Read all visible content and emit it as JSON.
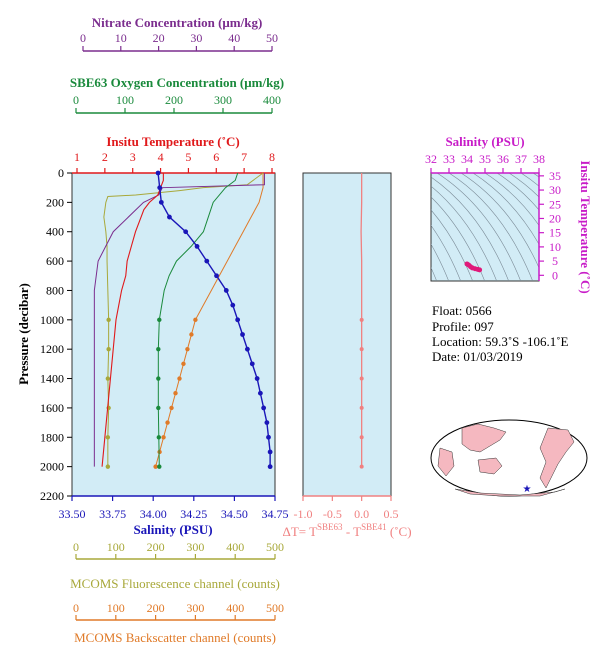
{
  "colors": {
    "nitrate": "#7b2d8e",
    "oxygen": "#1a8a3c",
    "temperature": "#e0191b",
    "salinity": "#1a16b8",
    "fluorescence": "#a8a83a",
    "backscatter": "#e07a28",
    "deltaT": "#f08080",
    "ts_axis": "#c81cc8",
    "panel_bg": "#d2ecf6",
    "land": "#f5b8c0"
  },
  "main_plot": {
    "pressure_axis": {
      "label": "Pressure (decibar)",
      "ticks": [
        "0",
        "200",
        "400",
        "600",
        "800",
        "1000",
        "1200",
        "1400",
        "1600",
        "1800",
        "2000",
        "2200"
      ],
      "range": [
        0,
        2200
      ]
    },
    "nitrate_axis": {
      "label": "Nitrate Concentration (μm/kg)",
      "ticks": [
        "0",
        "10",
        "20",
        "30",
        "40",
        "50"
      ],
      "range": [
        0,
        50
      ]
    },
    "oxygen_axis": {
      "label": "SBE63 Oxygen Concentration (μm/kg)",
      "ticks": [
        "0",
        "100",
        "200",
        "300",
        "400"
      ],
      "range": [
        0,
        400
      ]
    },
    "temperature_axis": {
      "label": "Insitu Temperature (˚C)",
      "ticks": [
        "1",
        "2",
        "3",
        "4",
        "5",
        "6",
        "7",
        "8"
      ],
      "range": [
        1,
        8
      ]
    },
    "salinity_axis": {
      "label": "Salinity (PSU)",
      "ticks": [
        "33.50",
        "33.75",
        "34.00",
        "34.25",
        "34.50",
        "34.75"
      ],
      "range": [
        33.5,
        34.75
      ]
    },
    "fluorescence_axis": {
      "label": "MCOMS Fluorescence channel (counts)",
      "ticks": [
        "0",
        "100",
        "200",
        "300",
        "400",
        "500"
      ],
      "range": [
        0,
        500
      ]
    },
    "backscatter_axis": {
      "label": "MCOMS Backscatter channel (counts)",
      "ticks": [
        "0",
        "100",
        "200",
        "300",
        "400",
        "500"
      ],
      "range": [
        0,
        500
      ]
    }
  },
  "delta_plot": {
    "ticks": [
      "-1.0",
      "-0.5",
      "0.0",
      "0.5"
    ],
    "range": [
      -1.0,
      0.5
    ],
    "label_prefix": "ΔT= T",
    "label_sup1": "SBE63",
    "label_mid": " - T",
    "label_sup2": "SBE41",
    "label_suffix": " (˚C)"
  },
  "ts_plot": {
    "top_label": "Salinity (PSU)",
    "top_ticks": [
      "32",
      "33",
      "34",
      "35",
      "36",
      "37",
      "38"
    ],
    "top_range": [
      32,
      38
    ],
    "right_label": "Insitu Temperature (˚C)",
    "right_ticks": [
      "0",
      "5",
      "10",
      "15",
      "20",
      "25",
      "30",
      "35"
    ],
    "right_range": [
      -2,
      36
    ]
  },
  "info": {
    "float": "Float:  0566",
    "profile": "Profile:  097",
    "location": "Location:  59.3˚S  -106.1˚E",
    "date": "Date:  01/03/2019"
  },
  "chart_data": [
    {
      "type": "line",
      "name": "Insitu Temperature",
      "x_unit": "˚C",
      "pressure": [
        0,
        50,
        100,
        150,
        200,
        250,
        300,
        400,
        500,
        600,
        700,
        800,
        900,
        1000,
        1200,
        1400,
        1600,
        1800,
        2000
      ],
      "values": [
        4.1,
        4.1,
        4.0,
        3.9,
        3.6,
        3.4,
        3.3,
        3.1,
        2.95,
        2.8,
        2.75,
        2.6,
        2.5,
        2.4,
        2.3,
        2.2,
        2.1,
        2.0,
        1.9
      ]
    },
    {
      "type": "line",
      "name": "Salinity",
      "x_unit": "PSU",
      "pressure": [
        0,
        100,
        200,
        300,
        400,
        500,
        600,
        700,
        800,
        900,
        1000,
        1100,
        1200,
        1300,
        1400,
        1500,
        1600,
        1700,
        1800,
        1900,
        2000
      ],
      "values": [
        34.03,
        34.04,
        34.05,
        34.1,
        34.2,
        34.27,
        34.33,
        34.39,
        34.45,
        34.49,
        34.52,
        34.55,
        34.58,
        34.61,
        34.64,
        34.66,
        34.68,
        34.7,
        34.71,
        34.72,
        34.72
      ]
    },
    {
      "type": "line",
      "name": "SBE63 Oxygen Concentration",
      "x_unit": "μm/kg",
      "pressure": [
        0,
        50,
        100,
        200,
        300,
        400,
        500,
        600,
        700,
        800,
        900,
        1000,
        1200,
        1400,
        1600,
        1800,
        2000
      ],
      "values": [
        330,
        325,
        305,
        280,
        270,
        260,
        235,
        205,
        190,
        180,
        175,
        170,
        168,
        168,
        168,
        169,
        170
      ]
    },
    {
      "type": "line",
      "name": "Nitrate Concentration",
      "x_unit": "μm/kg",
      "pressure": [
        0,
        80,
        100,
        150,
        200,
        400,
        500,
        600,
        700,
        800,
        900,
        1000,
        1200,
        1400,
        1600,
        1800,
        2000
      ],
      "values": [
        48,
        48,
        21,
        20,
        16,
        8,
        6,
        4,
        3.5,
        3,
        3,
        3,
        3,
        3,
        3,
        3,
        3
      ]
    },
    {
      "type": "line",
      "name": "MCOMS Fluorescence channel",
      "x_unit": "counts",
      "pressure": [
        0,
        80,
        100,
        120,
        150,
        160,
        200,
        300,
        400,
        500,
        600,
        800,
        1000,
        1200,
        1400,
        1600,
        1800,
        2000
      ],
      "values": [
        470,
        430,
        320,
        260,
        150,
        80,
        75,
        70,
        75,
        78,
        78,
        80,
        82,
        82,
        80,
        82,
        80,
        80
      ]
    },
    {
      "type": "line",
      "name": "MCOMS Backscatter channel",
      "x_unit": "counts",
      "pressure": [
        0,
        100,
        200,
        300,
        400,
        500,
        600,
        700,
        800,
        900,
        1000,
        1100,
        1200,
        1300,
        1400,
        1500,
        1600,
        1700,
        1800,
        1900,
        2000
      ],
      "values": [
        470,
        470,
        460,
        440,
        420,
        400,
        380,
        360,
        340,
        320,
        300,
        290,
        280,
        270,
        260,
        250,
        240,
        230,
        220,
        210,
        200
      ]
    },
    {
      "type": "line",
      "name": "Delta T",
      "x_unit": "˚C",
      "pressure": [
        0,
        200,
        400,
        600,
        800,
        1000,
        1200,
        1400,
        1600,
        1800,
        2000
      ],
      "values": [
        0.0,
        0.0,
        -0.01,
        0.0,
        0.0,
        0.0,
        0.0,
        0.0,
        0.0,
        0.0,
        0.0
      ]
    },
    {
      "type": "scatter",
      "name": "T-S diagram",
      "x_unit": "PSU",
      "y_unit": "˚C",
      "x": [
        34.0,
        34.1,
        34.2,
        34.3,
        34.45,
        34.6,
        34.7
      ],
      "y": [
        4.0,
        3.6,
        3.0,
        2.6,
        2.3,
        2.1,
        1.9
      ]
    }
  ]
}
